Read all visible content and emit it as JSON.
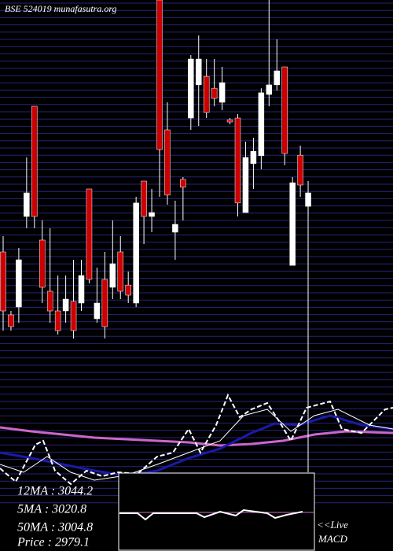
{
  "chart_data": {
    "type": "candlestick",
    "title": "BSE 524019 munafasutra.org",
    "ylim": [
      2849,
      3150
    ],
    "up_color": "#ffffff",
    "down_color": "#cc0000",
    "open": [
      2926,
      2870,
      2877,
      2957.5,
      3055.5,
      2936.5,
      2891,
      2873.5,
      2873.5,
      2882,
      2880.5,
      2982,
      2866.5,
      2901.5,
      2894.5,
      2926,
      2896.5,
      2880.5,
      2989,
      2957.5,
      3150,
      3034.5,
      2943.5,
      2990.5,
      3045,
      3074.5,
      3082,
      3071.5,
      3059,
      3043.5,
      3045,
      2961,
      3004.5,
      3011.5,
      3066,
      3074.5,
      3090.5,
      2914,
      3012,
      2966.5
    ],
    "high": [
      2940,
      2873.5,
      2929.5,
      3010,
      3055.5,
      2954,
      2947,
      2905,
      2905,
      2919,
      2919,
      2982,
      2912,
      2926,
      2954,
      2940,
      2908.5,
      2975,
      2989,
      2982,
      3150,
      3059,
      2971.5,
      2992.5,
      3101,
      3118.5,
      3097.5,
      3097.5,
      3090.5,
      3045,
      3048.5,
      3024,
      3027.5,
      3071.5,
      3150,
      3115,
      3090.5,
      2992.5,
      3020.5,
      2989
    ],
    "low": [
      2856,
      2856,
      2863,
      2947,
      2947,
      2880.5,
      2863,
      2852.5,
      2863,
      2849,
      2873.5,
      2898,
      2863,
      2849,
      2884,
      2884,
      2880.5,
      2877,
      2933,
      2943.5,
      2975,
      2968,
      2919,
      2954,
      3034.5,
      3038,
      3045,
      3055.5,
      3052,
      3039.5,
      2957.5,
      2961,
      2982,
      2999.5,
      3055.5,
      3069.5,
      3003,
      2914,
      2975,
      2957.5
    ],
    "close": [
      2873.5,
      2859.5,
      2919,
      2978.5,
      2957.5,
      2894.5,
      2873.5,
      2856,
      2884,
      2856,
      2905,
      2901.5,
      2880.5,
      2859.5,
      2915.5,
      2891,
      2887.5,
      2969.5,
      2957.5,
      2961,
      3017,
      2976.5,
      2950.5,
      2983.5,
      3097.5,
      3097.5,
      3050,
      3062.5,
      3076.5,
      3041.5,
      2969.5,
      3010,
      3015.5,
      3067.5,
      3074.5,
      3087,
      3013.5,
      2987.5,
      2985.5,
      2978.5
    ],
    "stats": [
      "12MA : 3044.2",
      "5MA : 3020.8",
      "50MA : 3004.8",
      "Price  : 2979.1"
    ],
    "live_label": "<<Live",
    "indicator_label": "MACD"
  }
}
